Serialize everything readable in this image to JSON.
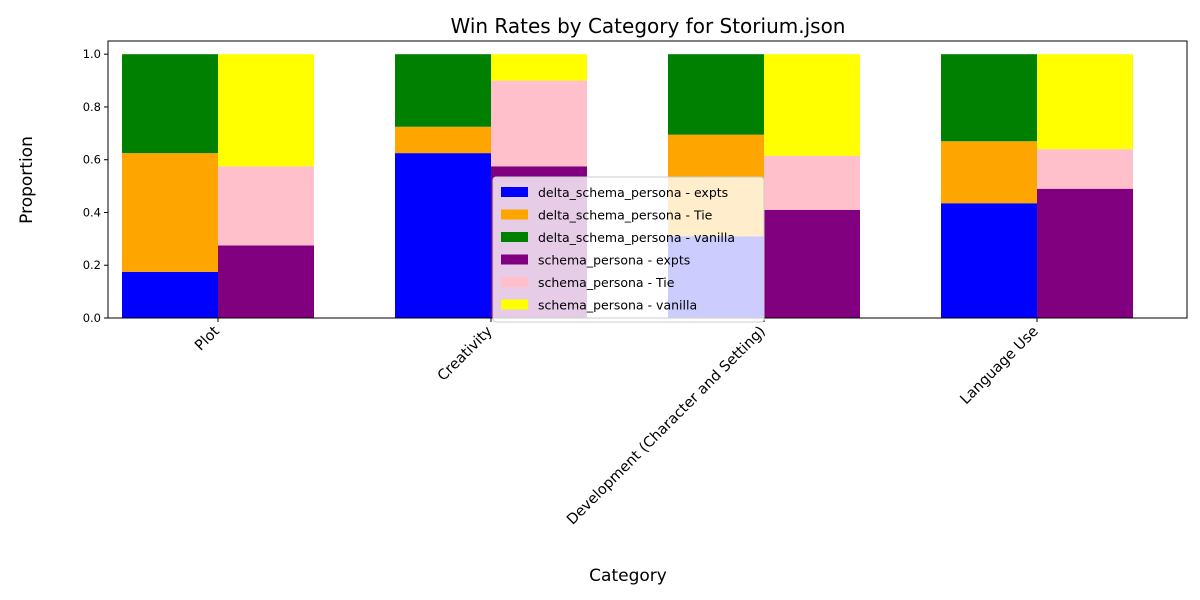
{
  "chart_data": {
    "type": "bar",
    "stacked": true,
    "title": "Win Rates by Category for Storium.json",
    "xlabel": "Category",
    "ylabel": "Proportion",
    "ylim": [
      0,
      1.05
    ],
    "yticks": [
      "0.0",
      "0.2",
      "0.4",
      "0.6",
      "0.8",
      "1.0"
    ],
    "categories": [
      "Plot",
      "Creativity",
      "Development (Character and Setting)",
      "Language Use"
    ],
    "groups": [
      {
        "name": "delta_schema_persona",
        "series": [
          {
            "name": "delta_schema_persona - expts",
            "color": "#0000ff",
            "values": [
              0.175,
              0.625,
              0.31,
              0.435
            ]
          },
          {
            "name": "delta_schema_persona - Tie",
            "color": "#ffa500",
            "values": [
              0.45,
              0.1,
              0.385,
              0.235
            ]
          },
          {
            "name": "delta_schema_persona - vanilla",
            "color": "#008000",
            "values": [
              0.375,
              0.275,
              0.305,
              0.33
            ]
          }
        ]
      },
      {
        "name": "schema_persona",
        "series": [
          {
            "name": "schema_persona - expts",
            "color": "#800080",
            "values": [
              0.275,
              0.575,
              0.41,
              0.49
            ]
          },
          {
            "name": "schema_persona - Tie",
            "color": "#ffc0cb",
            "values": [
              0.3,
              0.325,
              0.205,
              0.15
            ]
          },
          {
            "name": "schema_persona - vanilla",
            "color": "#ffff00",
            "values": [
              0.425,
              0.1,
              0.385,
              0.36
            ]
          }
        ]
      }
    ],
    "legend_position": "center"
  }
}
